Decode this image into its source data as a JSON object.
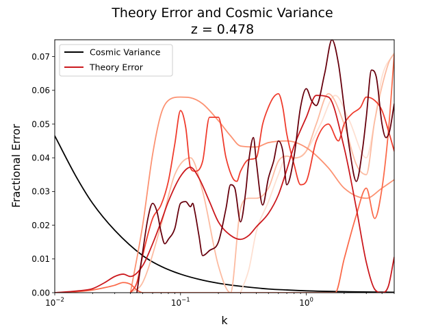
{
  "chart_data": {
    "type": "line",
    "title": "Theory Error and Cosmic Variance",
    "subtitle": "z = 0.478",
    "xlabel": "k",
    "ylabel": "Fractional Error",
    "xscale": "log",
    "xlim": [
      0.01,
      5.0
    ],
    "ylim": [
      0.0,
      0.075
    ],
    "x_ticks": [
      {
        "value": 0.01,
        "base": "10",
        "exp": "−2"
      },
      {
        "value": 0.1,
        "base": "10",
        "exp": "−1"
      },
      {
        "value": 1.0,
        "base": "10",
        "exp": "0"
      }
    ],
    "y_ticks": [
      {
        "value": 0.0,
        "label": "0.00"
      },
      {
        "value": 0.01,
        "label": "0.01"
      },
      {
        "value": 0.02,
        "label": "0.02"
      },
      {
        "value": 0.03,
        "label": "0.03"
      },
      {
        "value": 0.04,
        "label": "0.04"
      },
      {
        "value": 0.05,
        "label": "0.05"
      },
      {
        "value": 0.06,
        "label": "0.06"
      },
      {
        "value": 0.07,
        "label": "0.07"
      }
    ],
    "grid": false,
    "legend": {
      "position": "top-left",
      "entries": [
        {
          "label": "Cosmic Variance",
          "color": "#000000"
        },
        {
          "label": "Theory Error",
          "color": "#cb181d"
        }
      ]
    },
    "series": [
      {
        "name": "Cosmic Variance",
        "color": "#000000",
        "x": [
          0.01,
          0.015,
          0.02,
          0.03,
          0.05,
          0.07,
          0.1,
          0.15,
          0.2,
          0.3,
          0.5,
          0.7,
          1.0,
          2.0,
          5.0
        ],
        "y": [
          0.0465,
          0.034,
          0.0265,
          0.0185,
          0.011,
          0.0078,
          0.0055,
          0.0037,
          0.0028,
          0.0019,
          0.0011,
          0.0008,
          0.00055,
          0.0003,
          0.00012
        ]
      },
      {
        "color": "#fee0d2",
        "x": [
          0.3,
          0.35,
          0.4,
          0.5,
          0.6,
          0.7,
          0.8,
          1.0,
          1.3,
          1.7,
          2.2,
          3.0,
          3.5,
          4.0,
          5.0
        ],
        "y": [
          0.0,
          0.007,
          0.018,
          0.027,
          0.035,
          0.0405,
          0.0398,
          0.042,
          0.05,
          0.0585,
          0.051,
          0.04,
          0.051,
          0.064,
          0.071
        ]
      },
      {
        "color": "#fcbba1",
        "x": [
          0.04,
          0.05,
          0.07,
          0.09,
          0.12,
          0.15,
          0.2,
          0.25,
          0.3,
          0.35,
          0.4,
          0.5,
          0.6,
          0.7,
          0.8,
          1.0,
          1.2,
          1.5,
          2.0,
          2.5,
          3.0,
          3.5,
          4.5,
          5.0
        ],
        "y": [
          0.0,
          0.003,
          0.02,
          0.035,
          0.04,
          0.03,
          0.008,
          0.0,
          0.025,
          0.028,
          0.028,
          0.031,
          0.039,
          0.0405,
          0.04,
          0.042,
          0.05,
          0.059,
          0.05,
          0.038,
          0.035,
          0.051,
          0.068,
          0.071
        ]
      },
      {
        "color": "#fc9272",
        "x": [
          0.04,
          0.05,
          0.06,
          0.07,
          0.08,
          0.1,
          0.12,
          0.15,
          0.2,
          0.25,
          0.3,
          0.4,
          0.5,
          0.7,
          1.0,
          1.5,
          2.0,
          3.0,
          4.0,
          5.0
        ],
        "y": [
          0.0,
          0.02,
          0.041,
          0.053,
          0.057,
          0.058,
          0.0578,
          0.056,
          0.051,
          0.0465,
          0.0435,
          0.0432,
          0.0445,
          0.045,
          0.043,
          0.037,
          0.031,
          0.028,
          0.031,
          0.0335
        ]
      },
      {
        "color": "#fb6a4a",
        "x": [
          0.01,
          0.015,
          0.02,
          0.025,
          0.03,
          0.035,
          0.04,
          0.045,
          0.05,
          0.06,
          0.08,
          0.1,
          0.12,
          0.15,
          0.2,
          0.25,
          0.3,
          0.4,
          0.5,
          0.6,
          0.7,
          0.8,
          1.0,
          1.3,
          1.7,
          2.0,
          2.5,
          3.0,
          3.5,
          4.0,
          4.5,
          5.0
        ],
        "y": [
          0.0,
          0.0003,
          0.0008,
          0.0015,
          0.0022,
          0.003,
          0.0025,
          0.0008,
          0.0,
          0.0,
          0.0,
          0.0,
          0.0,
          0.0,
          0.0,
          0.0,
          0.0,
          0.0,
          0.0,
          0.0,
          0.0,
          0.0,
          0.0,
          0.0,
          0.0,
          0.01,
          0.023,
          0.031,
          0.022,
          0.031,
          0.048,
          0.0705
        ]
      },
      {
        "color": "#ef3b2c",
        "x": [
          0.04,
          0.045,
          0.05,
          0.06,
          0.07,
          0.08,
          0.09,
          0.1,
          0.11,
          0.12,
          0.13,
          0.15,
          0.17,
          0.2,
          0.23,
          0.26,
          0.28,
          0.3,
          0.35,
          0.4,
          0.45,
          0.5,
          0.55,
          0.6,
          0.65,
          0.7,
          0.8,
          0.9,
          1.0,
          1.2,
          1.5,
          1.8,
          2.0,
          2.3,
          2.7,
          3.0,
          3.5,
          4.0,
          4.5,
          5.0
        ],
        "y": [
          0.0,
          0.003,
          0.011,
          0.022,
          0.026,
          0.033,
          0.044,
          0.054,
          0.049,
          0.037,
          0.036,
          0.039,
          0.052,
          0.052,
          0.04,
          0.034,
          0.033,
          0.036,
          0.0395,
          0.04,
          0.05,
          0.055,
          0.058,
          0.059,
          0.055,
          0.047,
          0.038,
          0.032,
          0.033,
          0.045,
          0.05,
          0.045,
          0.05,
          0.053,
          0.055,
          0.058,
          0.057,
          0.054,
          0.048,
          0.042
        ]
      },
      {
        "color": "#cb181d",
        "x": [
          0.01,
          0.015,
          0.02,
          0.025,
          0.03,
          0.035,
          0.04,
          0.05,
          0.06,
          0.07,
          0.08,
          0.1,
          0.12,
          0.14,
          0.17,
          0.2,
          0.25,
          0.3,
          0.35,
          0.4,
          0.5,
          0.6,
          0.7,
          0.8,
          1.0,
          1.2,
          1.5,
          2.0,
          2.5,
          3.0,
          3.5,
          4.0,
          4.5,
          5.0
        ],
        "y": [
          0.0,
          0.0005,
          0.0012,
          0.003,
          0.0048,
          0.0055,
          0.0048,
          0.008,
          0.0145,
          0.021,
          0.027,
          0.0345,
          0.0372,
          0.034,
          0.027,
          0.021,
          0.017,
          0.0158,
          0.017,
          0.0195,
          0.0235,
          0.029,
          0.0365,
          0.0435,
          0.052,
          0.0585,
          0.058,
          0.043,
          0.025,
          0.009,
          0.001,
          0.0,
          0.002,
          0.0105
        ]
      },
      {
        "color": "#67000d",
        "x": [
          0.045,
          0.05,
          0.055,
          0.06,
          0.065,
          0.07,
          0.075,
          0.08,
          0.09,
          0.1,
          0.11,
          0.12,
          0.125,
          0.13,
          0.14,
          0.15,
          0.17,
          0.2,
          0.23,
          0.25,
          0.27,
          0.3,
          0.33,
          0.35,
          0.38,
          0.4,
          0.45,
          0.5,
          0.55,
          0.6,
          0.65,
          0.7,
          0.8,
          0.9,
          1.0,
          1.1,
          1.2,
          1.4,
          1.6,
          1.8,
          2.0,
          2.2,
          2.5,
          2.8,
          3.0,
          3.3,
          3.6,
          4.0,
          4.3,
          4.6,
          5.0
        ],
        "y": [
          0.0,
          0.012,
          0.022,
          0.0265,
          0.024,
          0.018,
          0.0145,
          0.0158,
          0.019,
          0.0265,
          0.027,
          0.0255,
          0.0265,
          0.024,
          0.017,
          0.011,
          0.0125,
          0.015,
          0.025,
          0.032,
          0.031,
          0.021,
          0.03,
          0.0395,
          0.046,
          0.039,
          0.026,
          0.034,
          0.039,
          0.045,
          0.042,
          0.032,
          0.0405,
          0.055,
          0.0605,
          0.057,
          0.0555,
          0.065,
          0.075,
          0.068,
          0.055,
          0.043,
          0.033,
          0.0425,
          0.052,
          0.066,
          0.064,
          0.05,
          0.046,
          0.048,
          0.056
        ]
      }
    ]
  }
}
